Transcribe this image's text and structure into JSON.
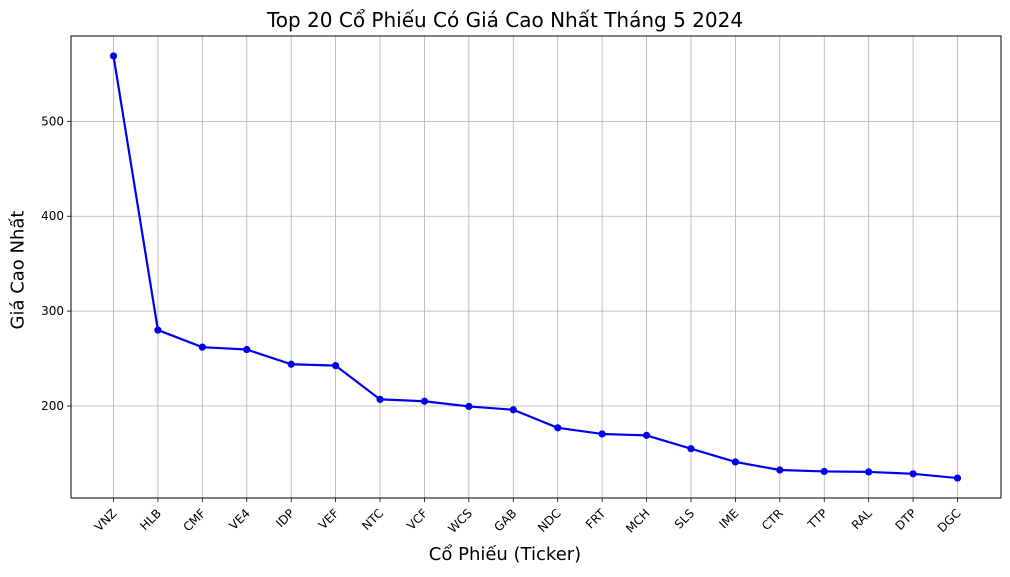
{
  "chart_data": {
    "type": "line",
    "title": "Top 20 Cổ Phiếu Có Giá Cao Nhất Tháng 5 2024",
    "xlabel": "Cổ Phiếu (Ticker)",
    "ylabel": "Giá Cao Nhất",
    "categories": [
      "VNZ",
      "HLB",
      "CMF",
      "VE4",
      "IDP",
      "VEF",
      "NTC",
      "VCF",
      "WCS",
      "GAB",
      "NDC",
      "FRT",
      "MCH",
      "SLS",
      "IME",
      "CTR",
      "TTP",
      "RAL",
      "DTP",
      "DGC"
    ],
    "series": [
      {
        "values": [
          569,
          280,
          262,
          259.5,
          244,
          242.5,
          207,
          205,
          199.5,
          196,
          177,
          170.5,
          169,
          155,
          141,
          132.5,
          131,
          130.5,
          128.5,
          124
        ]
      }
    ],
    "ylim": [
      103,
      590
    ],
    "yticks": [
      200,
      300,
      400,
      500
    ],
    "grid": true,
    "line_color": "#0000ee"
  }
}
